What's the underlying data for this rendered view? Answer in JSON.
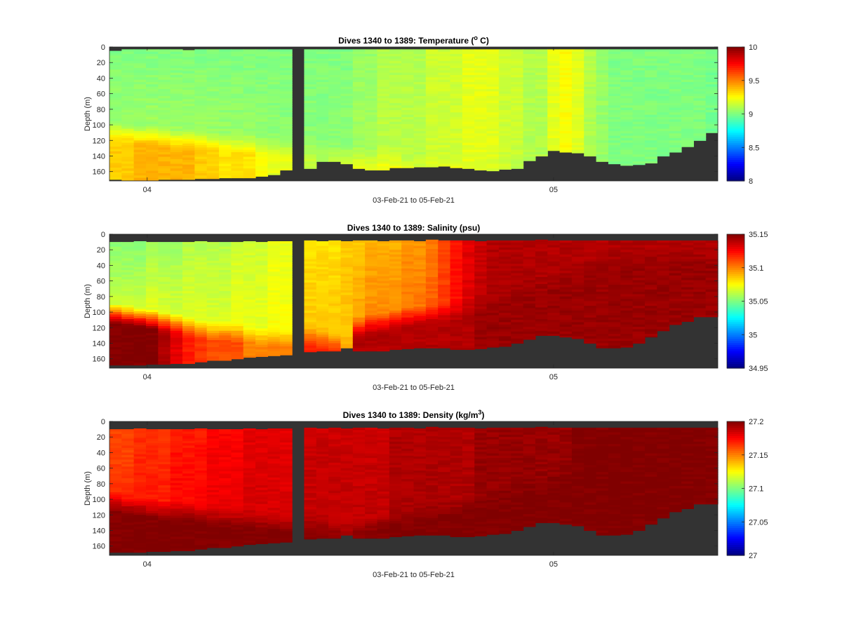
{
  "chart_data": [
    {
      "type": "heatmap",
      "variable": "Temperature",
      "title": "Dives 1340 to 1389: Temperature (",
      "title_sup": "o",
      "title_tail": " C)",
      "xlabel": "03-Feb-21 to 05-Feb-21",
      "ylabel": "Depth (m)",
      "x_ticks": [
        "04",
        "05"
      ],
      "y_ticks": [
        0,
        20,
        40,
        60,
        80,
        100,
        120,
        140,
        160
      ],
      "ylim": [
        0,
        172
      ],
      "y_reversed": true,
      "colorbar": {
        "min": 8,
        "max": 10,
        "ticks": [
          8,
          8.5,
          9,
          9.5,
          10
        ]
      },
      "colormap": "jet",
      "nodata_color": "#333333",
      "dives": 50,
      "gap_dive": 15,
      "top_depth": [
        5,
        3,
        3,
        3,
        3,
        3,
        4,
        3,
        3,
        3,
        3,
        3,
        3,
        3,
        3,
        3,
        3,
        3,
        3,
        3,
        3,
        3,
        3,
        3,
        3,
        3,
        3,
        3,
        3,
        3,
        3,
        3,
        3,
        3,
        3,
        3,
        3,
        3,
        3,
        3,
        3,
        3,
        3,
        3,
        3,
        3,
        3,
        3,
        3,
        3
      ],
      "bottom_depth": [
        170,
        171,
        171,
        171,
        170,
        170,
        170,
        169,
        169,
        168,
        168,
        168,
        166,
        164,
        158,
        156,
        156,
        147,
        147,
        150,
        156,
        158,
        158,
        155,
        155,
        154,
        154,
        153,
        155,
        156,
        158,
        159,
        157,
        156,
        146,
        140,
        133,
        135,
        136,
        140,
        147,
        150,
        152,
        151,
        149,
        140,
        135,
        128,
        120,
        110
      ],
      "surface_value": [
        9.0,
        9.0,
        9.0,
        9.0,
        9.0,
        9.0,
        9.0,
        9.0,
        9.0,
        9.0,
        9.0,
        9.0,
        9.0,
        9.0,
        9.0,
        9.0,
        9.0,
        9.0,
        9.0,
        9.0,
        9.05,
        9.05,
        9.1,
        9.1,
        9.1,
        9.1,
        9.15,
        9.15,
        9.15,
        9.2,
        9.2,
        9.2,
        9.15,
        9.15,
        9.1,
        9.1,
        9.2,
        9.25,
        9.2,
        9.1,
        9.05,
        9.0,
        9.0,
        9.0,
        9.0,
        9.0,
        9.0,
        9.0,
        9.0,
        8.98
      ],
      "bottom_value": [
        9.35,
        9.35,
        9.4,
        9.4,
        9.4,
        9.4,
        9.4,
        9.35,
        9.35,
        9.3,
        9.3,
        9.3,
        9.25,
        9.2,
        9.2,
        9.15,
        9.15,
        9.1,
        9.15,
        9.2,
        9.2,
        9.2,
        9.25,
        9.25,
        9.2,
        9.2,
        9.2,
        9.2,
        9.25,
        9.2,
        9.2,
        9.15,
        9.15,
        9.1,
        9.1,
        9.1,
        9.2,
        9.2,
        9.1,
        9.05,
        9.0,
        9.0,
        9.0,
        9.0,
        9.0,
        9.0,
        9.0,
        9.0,
        9.0,
        8.98
      ],
      "transition_depth": [
        95,
        97,
        100,
        100,
        102,
        105,
        105,
        105,
        108,
        108,
        110,
        110,
        112,
        112,
        115,
        115,
        120,
        120,
        122,
        125,
        128,
        130,
        130,
        132,
        134,
        135,
        136,
        138,
        140,
        140,
        140,
        140,
        140,
        140,
        138,
        135,
        132,
        130,
        130,
        135,
        140,
        140,
        140,
        140,
        140,
        140,
        140,
        140,
        140,
        140
      ]
    },
    {
      "type": "heatmap",
      "variable": "Salinity",
      "title": "Dives 1340 to 1389: Salinity (psu)",
      "xlabel": "03-Feb-21 to 05-Feb-21",
      "ylabel": "Depth (m)",
      "x_ticks": [
        "04",
        "05"
      ],
      "y_ticks": [
        0,
        20,
        40,
        60,
        80,
        100,
        120,
        140,
        160
      ],
      "ylim": [
        0,
        172
      ],
      "y_reversed": true,
      "colorbar": {
        "min": 34.95,
        "max": 35.15,
        "ticks": [
          34.95,
          35,
          35.05,
          35.1,
          35.15
        ]
      },
      "colormap": "jet",
      "nodata_color": "#333333",
      "dives": 50,
      "gap_dive": 15,
      "top_depth": [
        10,
        10,
        9,
        10,
        10,
        10,
        10,
        9,
        10,
        10,
        10,
        9,
        10,
        9,
        9,
        10,
        8,
        9,
        8,
        9,
        8,
        8,
        9,
        8,
        8,
        9,
        7,
        8,
        8,
        8,
        9,
        8,
        8,
        8,
        8,
        7,
        8,
        8,
        8,
        8,
        8,
        8,
        8,
        8,
        8,
        8,
        8,
        8,
        8,
        8
      ],
      "bottom_depth": [
        168,
        168,
        168,
        167,
        167,
        166,
        166,
        164,
        162,
        162,
        160,
        158,
        157,
        156,
        155,
        152,
        151,
        150,
        150,
        146,
        150,
        150,
        150,
        148,
        147,
        146,
        146,
        146,
        148,
        148,
        147,
        145,
        144,
        140,
        135,
        130,
        130,
        132,
        134,
        140,
        146,
        146,
        145,
        140,
        132,
        124,
        116,
        112,
        106,
        106
      ],
      "surface_value": [
        35.05,
        35.05,
        35.05,
        35.055,
        35.055,
        35.055,
        35.06,
        35.06,
        35.06,
        35.06,
        35.065,
        35.065,
        35.065,
        35.07,
        35.07,
        35.07,
        35.08,
        35.08,
        35.08,
        35.085,
        35.085,
        35.09,
        35.09,
        35.09,
        35.095,
        35.095,
        35.1,
        35.11,
        35.12,
        35.13,
        35.135,
        35.14,
        35.14,
        35.14,
        35.14,
        35.14,
        35.14,
        35.14,
        35.14,
        35.14,
        35.14,
        35.14,
        35.14,
        35.14,
        35.14,
        35.14,
        35.14,
        35.14,
        35.14,
        35.14
      ],
      "bottom_value": [
        35.15,
        35.15,
        35.15,
        35.15,
        35.14,
        35.13,
        35.12,
        35.115,
        35.11,
        35.11,
        35.11,
        35.1,
        35.1,
        35.1,
        35.1,
        35.1,
        35.12,
        35.12,
        35.12,
        35.1,
        35.14,
        35.14,
        35.14,
        35.14,
        35.14,
        35.14,
        35.14,
        35.14,
        35.14,
        35.14,
        35.145,
        35.145,
        35.145,
        35.145,
        35.145,
        35.145,
        35.145,
        35.145,
        35.145,
        35.145,
        35.145,
        35.145,
        35.145,
        35.145,
        35.145,
        35.145,
        35.145,
        35.145,
        35.145,
        35.145
      ],
      "transition_depth": [
        88,
        90,
        92,
        95,
        98,
        100,
        105,
        108,
        110,
        110,
        112,
        115,
        118,
        118,
        120,
        125,
        118,
        122,
        125,
        130,
        105,
        100,
        98,
        95,
        92,
        90,
        88,
        86,
        84,
        80,
        75,
        70,
        65,
        60,
        55,
        50,
        45,
        40,
        35,
        30,
        25,
        20,
        18,
        15,
        15,
        15,
        15,
        15,
        15,
        15
      ]
    },
    {
      "type": "heatmap",
      "variable": "Density",
      "title": "Dives 1340 to 1389: Density (kg/m",
      "title_sup": "3",
      "title_tail": ")",
      "xlabel": "03-Feb-21 to 05-Feb-21",
      "ylabel": "Depth (m)",
      "x_ticks": [
        "04",
        "05"
      ],
      "y_ticks": [
        0,
        20,
        40,
        60,
        80,
        100,
        120,
        140,
        160
      ],
      "ylim": [
        0,
        172
      ],
      "y_reversed": true,
      "colorbar": {
        "min": 27,
        "max": 27.2,
        "ticks": [
          27,
          27.05,
          27.1,
          27.15,
          27.2
        ]
      },
      "colormap": "jet",
      "nodata_color": "#333333",
      "dives": 50,
      "gap_dive": 15,
      "top_depth": [
        10,
        10,
        9,
        10,
        10,
        10,
        10,
        9,
        10,
        10,
        10,
        9,
        10,
        9,
        9,
        10,
        8,
        9,
        8,
        9,
        8,
        8,
        9,
        8,
        8,
        9,
        7,
        8,
        8,
        8,
        9,
        8,
        8,
        8,
        8,
        7,
        8,
        8,
        8,
        8,
        8,
        8,
        8,
        8,
        8,
        8,
        8,
        8,
        8,
        8
      ],
      "bottom_depth": [
        168,
        168,
        168,
        167,
        167,
        166,
        166,
        164,
        162,
        162,
        160,
        158,
        157,
        156,
        155,
        152,
        151,
        150,
        150,
        146,
        150,
        150,
        150,
        148,
        147,
        146,
        146,
        146,
        148,
        148,
        147,
        145,
        144,
        140,
        135,
        130,
        130,
        132,
        134,
        140,
        146,
        146,
        145,
        140,
        132,
        124,
        116,
        112,
        106,
        106
      ],
      "surface_value": [
        27.16,
        27.16,
        27.165,
        27.165,
        27.165,
        27.17,
        27.17,
        27.17,
        27.175,
        27.175,
        27.175,
        27.18,
        27.18,
        27.18,
        27.18,
        27.18,
        27.185,
        27.185,
        27.185,
        27.185,
        27.185,
        27.185,
        27.185,
        27.19,
        27.19,
        27.19,
        27.19,
        27.19,
        27.19,
        27.19,
        27.195,
        27.195,
        27.195,
        27.195,
        27.195,
        27.195,
        27.195,
        27.195,
        27.2,
        27.2,
        27.2,
        27.2,
        27.2,
        27.2,
        27.2,
        27.2,
        27.2,
        27.2,
        27.2,
        27.2
      ],
      "bottom_value": [
        27.2,
        27.2,
        27.2,
        27.2,
        27.2,
        27.2,
        27.2,
        27.2,
        27.2,
        27.2,
        27.2,
        27.2,
        27.2,
        27.2,
        27.2,
        27.2,
        27.2,
        27.2,
        27.2,
        27.2,
        27.2,
        27.2,
        27.2,
        27.2,
        27.2,
        27.2,
        27.2,
        27.2,
        27.2,
        27.2,
        27.2,
        27.2,
        27.2,
        27.2,
        27.2,
        27.2,
        27.2,
        27.2,
        27.2,
        27.2,
        27.2,
        27.2,
        27.2,
        27.2,
        27.2,
        27.2,
        27.2,
        27.2,
        27.2,
        27.2
      ],
      "transition_depth": [
        90,
        92,
        95,
        98,
        100,
        100,
        102,
        105,
        108,
        110,
        110,
        112,
        115,
        115,
        118,
        120,
        120,
        122,
        125,
        128,
        125,
        120,
        115,
        110,
        108,
        105,
        102,
        100,
        98,
        95,
        90,
        85,
        80,
        75,
        70,
        65,
        60,
        55,
        50,
        45,
        40,
        35,
        30,
        25,
        20,
        18,
        16,
        15,
        15,
        15
      ]
    }
  ]
}
